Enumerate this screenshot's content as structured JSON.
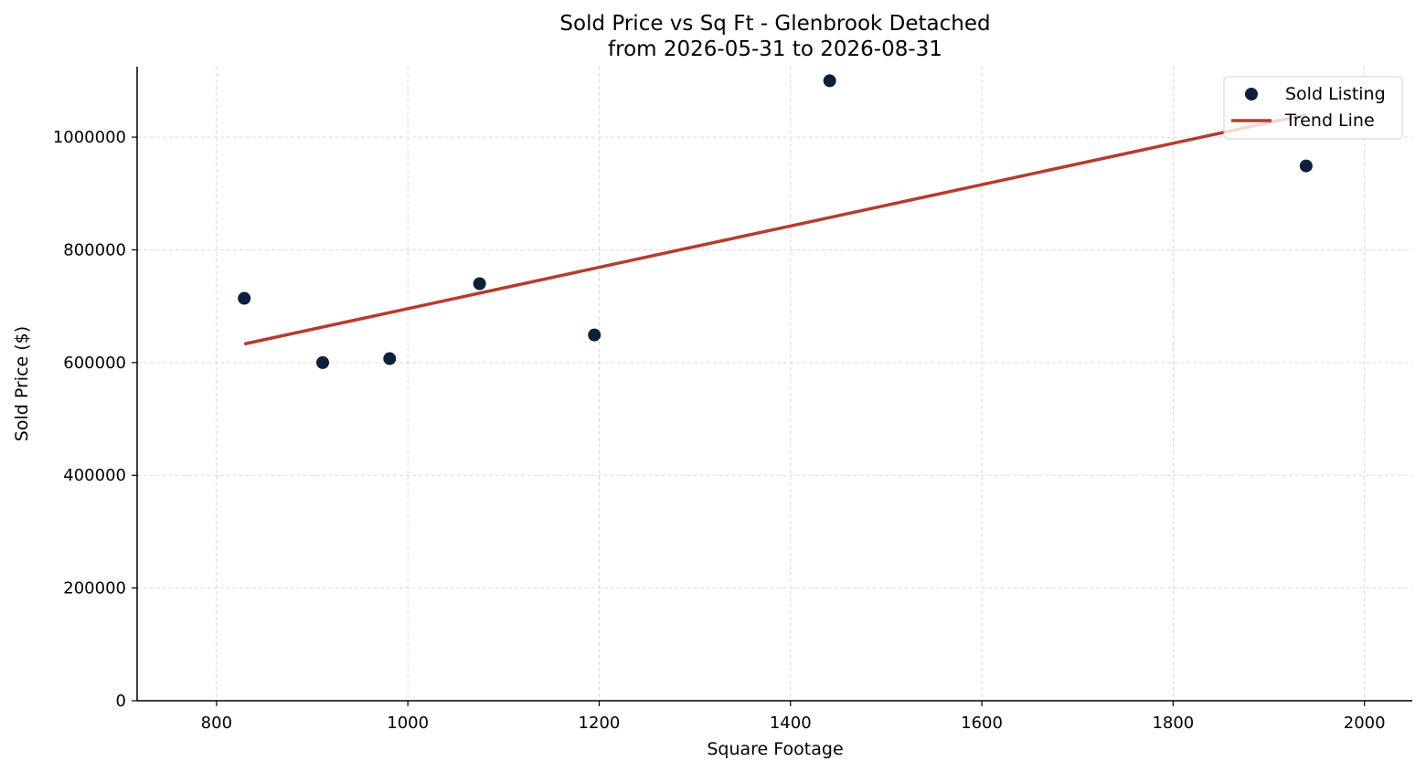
{
  "chart_data": {
    "type": "scatter",
    "title_line1": "Sold Price vs Sq Ft - Glenbrook Detached",
    "title_line2": "from 2026-05-31 to 2026-08-31",
    "xlabel": "Square Footage",
    "ylabel": "Sold Price ($)",
    "xlim": [
      717,
      2050
    ],
    "ylim": [
      0,
      1125000
    ],
    "x_ticks": [
      800,
      1000,
      1200,
      1400,
      1600,
      1800,
      2000
    ],
    "y_ticks": [
      0,
      200000,
      400000,
      600000,
      800000,
      1000000
    ],
    "grid": true,
    "legend_position": "top-right",
    "series": [
      {
        "name": "Sold Listing",
        "kind": "scatter",
        "color": "#0d1f3c",
        "points": [
          {
            "x": 829,
            "y": 714000
          },
          {
            "x": 911,
            "y": 600000
          },
          {
            "x": 981,
            "y": 607000
          },
          {
            "x": 1075,
            "y": 740000
          },
          {
            "x": 1195,
            "y": 649000
          },
          {
            "x": 1441,
            "y": 1100000
          },
          {
            "x": 1939,
            "y": 949000
          }
        ]
      },
      {
        "name": "Trend Line",
        "kind": "line",
        "color": "#b53c2e",
        "points": [
          {
            "x": 829,
            "y": 633000
          },
          {
            "x": 1939,
            "y": 1040000
          }
        ]
      }
    ]
  }
}
